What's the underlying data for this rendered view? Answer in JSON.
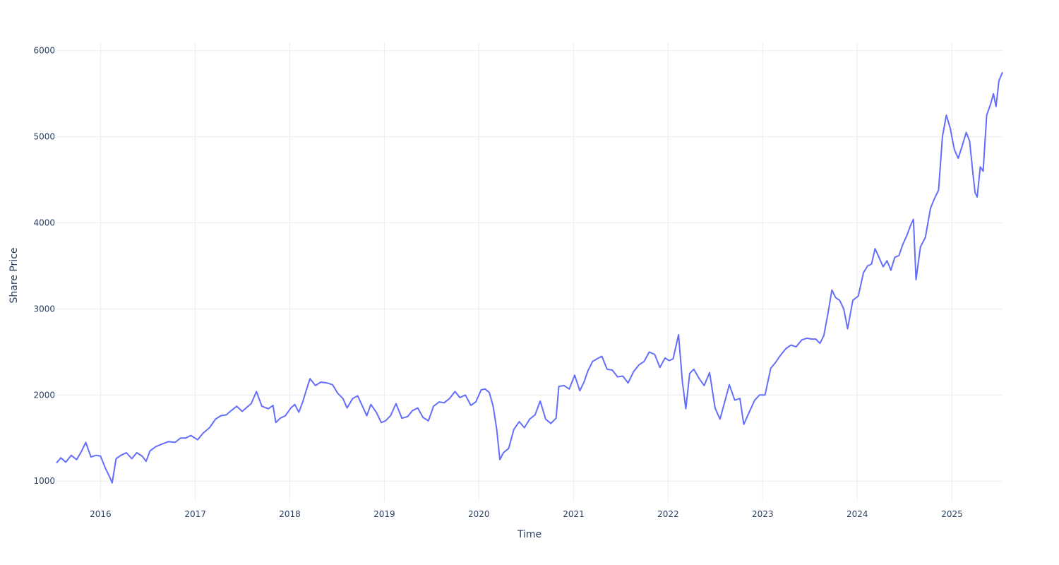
{
  "chart_data": {
    "type": "line",
    "title": "",
    "xlabel": "Time",
    "ylabel": "Share Price",
    "xlim": [
      "2015-07-15",
      "2025-07-15"
    ],
    "ylim": [
      764,
      6096
    ],
    "x_ticks": [
      "2016",
      "2017",
      "2018",
      "2019",
      "2020",
      "2021",
      "2022",
      "2023",
      "2024",
      "2025"
    ],
    "y_ticks": [
      "1000",
      "2000",
      "3000",
      "4000",
      "5000",
      "6000"
    ],
    "grid": true,
    "colors": {
      "line": "#636efa",
      "grid": "#ebedf2",
      "text": "#2a3f5f"
    },
    "series": [
      {
        "x": [
          "2015-07-15",
          "2015-08-01",
          "2015-08-20",
          "2015-09-10",
          "2015-10-01",
          "2015-10-20",
          "2015-11-05",
          "2015-11-25",
          "2015-12-15",
          "2016-01-01",
          "2016-01-20",
          "2016-02-05",
          "2016-02-15",
          "2016-03-01",
          "2016-03-20",
          "2016-04-10",
          "2016-05-01",
          "2016-05-20",
          "2016-06-10",
          "2016-06-25",
          "2016-07-10",
          "2016-08-01",
          "2016-08-25",
          "2016-09-20",
          "2016-10-15",
          "2016-11-05",
          "2016-11-25",
          "2016-12-15",
          "2017-01-10",
          "2017-02-01",
          "2017-02-25",
          "2017-03-20",
          "2017-04-10",
          "2017-05-01",
          "2017-05-20",
          "2017-06-10",
          "2017-07-01",
          "2017-07-20",
          "2017-08-05",
          "2017-08-25",
          "2017-09-15",
          "2017-10-10",
          "2017-10-28",
          "2017-11-08",
          "2017-11-25",
          "2017-12-15",
          "2018-01-05",
          "2018-01-20",
          "2018-02-05",
          "2018-02-20",
          "2018-03-05",
          "2018-03-20",
          "2018-04-10",
          "2018-05-01",
          "2018-05-25",
          "2018-06-15",
          "2018-07-05",
          "2018-07-25",
          "2018-08-10",
          "2018-09-01",
          "2018-09-20",
          "2018-10-10",
          "2018-10-25",
          "2018-11-10",
          "2018-12-01",
          "2018-12-20",
          "2019-01-05",
          "2019-01-25",
          "2019-02-15",
          "2019-03-10",
          "2019-04-01",
          "2019-04-20",
          "2019-05-10",
          "2019-05-30",
          "2019-06-20",
          "2019-07-10",
          "2019-08-01",
          "2019-08-20",
          "2019-09-10",
          "2019-10-01",
          "2019-10-20",
          "2019-11-10",
          "2019-12-01",
          "2019-12-20",
          "2020-01-10",
          "2020-01-25",
          "2020-02-10",
          "2020-02-25",
          "2020-03-10",
          "2020-03-22",
          "2020-04-05",
          "2020-04-25",
          "2020-05-15",
          "2020-06-05",
          "2020-06-25",
          "2020-07-15",
          "2020-08-05",
          "2020-08-25",
          "2020-09-15",
          "2020-10-05",
          "2020-10-25",
          "2020-11-05",
          "2020-11-25",
          "2020-12-15",
          "2021-01-05",
          "2021-01-25",
          "2021-02-10",
          "2021-02-25",
          "2021-03-15",
          "2021-04-01",
          "2021-04-20",
          "2021-05-10",
          "2021-05-30",
          "2021-06-20",
          "2021-07-10",
          "2021-07-30",
          "2021-08-20",
          "2021-09-10",
          "2021-09-30",
          "2021-10-20",
          "2021-11-10",
          "2021-11-30",
          "2021-12-20",
          "2022-01-05",
          "2022-01-20",
          "2022-02-10",
          "2022-02-25",
          "2022-03-10",
          "2022-03-25",
          "2022-04-10",
          "2022-05-01",
          "2022-05-20",
          "2022-06-10",
          "2022-07-01",
          "2022-07-20",
          "2022-08-10",
          "2022-08-25",
          "2022-09-15",
          "2022-10-05",
          "2022-10-20",
          "2022-11-10",
          "2022-12-01",
          "2022-12-20",
          "2023-01-10",
          "2023-02-01",
          "2023-02-20",
          "2023-03-10",
          "2023-04-01",
          "2023-04-20",
          "2023-05-10",
          "2023-06-01",
          "2023-06-20",
          "2023-07-10",
          "2023-07-25",
          "2023-08-10",
          "2023-08-25",
          "2023-09-10",
          "2023-09-25",
          "2023-10-10",
          "2023-10-25",
          "2023-11-10",
          "2023-11-25",
          "2023-12-15",
          "2024-01-05",
          "2024-01-25",
          "2024-02-10",
          "2024-02-25",
          "2024-03-10",
          "2024-03-25",
          "2024-04-10",
          "2024-04-25",
          "2024-05-10",
          "2024-05-25",
          "2024-06-10",
          "2024-06-25",
          "2024-07-10",
          "2024-07-25",
          "2024-08-05",
          "2024-08-15",
          "2024-09-01",
          "2024-09-20",
          "2024-10-10",
          "2024-10-25",
          "2024-11-10",
          "2024-11-25",
          "2024-12-10",
          "2024-12-25",
          "2025-01-10",
          "2025-01-25",
          "2025-02-10",
          "2025-02-25",
          "2025-03-10",
          "2025-03-20",
          "2025-03-31",
          "2025-04-08",
          "2025-04-20",
          "2025-05-01",
          "2025-05-15",
          "2025-05-30",
          "2025-06-10",
          "2025-06-20",
          "2025-07-01",
          "2025-07-15"
        ],
        "y": [
          1210,
          1270,
          1220,
          1300,
          1250,
          1350,
          1450,
          1280,
          1300,
          1290,
          1150,
          1050,
          980,
          1260,
          1300,
          1330,
          1260,
          1330,
          1290,
          1230,
          1350,
          1400,
          1430,
          1460,
          1450,
          1500,
          1500,
          1530,
          1480,
          1560,
          1620,
          1720,
          1760,
          1770,
          1820,
          1870,
          1810,
          1860,
          1900,
          2040,
          1870,
          1840,
          1880,
          1680,
          1730,
          1760,
          1850,
          1890,
          1800,
          1920,
          2050,
          2190,
          2110,
          2150,
          2140,
          2120,
          2020,
          1960,
          1850,
          1960,
          1990,
          1860,
          1760,
          1890,
          1800,
          1680,
          1700,
          1760,
          1900,
          1730,
          1750,
          1820,
          1850,
          1740,
          1700,
          1870,
          1920,
          1910,
          1960,
          2040,
          1970,
          2000,
          1880,
          1920,
          2060,
          2070,
          2030,
          1870,
          1600,
          1250,
          1330,
          1380,
          1600,
          1690,
          1620,
          1720,
          1770,
          1930,
          1720,
          1670,
          1730,
          2100,
          2110,
          2070,
          2230,
          2050,
          2150,
          2280,
          2390,
          2420,
          2450,
          2300,
          2290,
          2210,
          2220,
          2140,
          2270,
          2350,
          2390,
          2500,
          2470,
          2320,
          2430,
          2400,
          2420,
          2700,
          2150,
          1840,
          2250,
          2300,
          2190,
          2110,
          2260,
          1850,
          1720,
          1950,
          2120,
          1940,
          1960,
          1660,
          1800,
          1940,
          2000,
          2000,
          2310,
          2380,
          2460,
          2540,
          2580,
          2560,
          2640,
          2660,
          2650,
          2650,
          2600,
          2690,
          2950,
          3220,
          3130,
          3100,
          3000,
          2770,
          3100,
          3150,
          3420,
          3500,
          3520,
          3700,
          3600,
          3490,
          3560,
          3450,
          3600,
          3620,
          3750,
          3850,
          3970,
          4040,
          3340,
          3720,
          3830,
          4170,
          4280,
          4380,
          5000,
          5250,
          5100,
          4850,
          4750,
          4900,
          5050,
          4950,
          4650,
          4350,
          4300,
          4650,
          4600,
          5250,
          5380,
          5500,
          5350,
          5650,
          5750
        ]
      }
    ]
  }
}
